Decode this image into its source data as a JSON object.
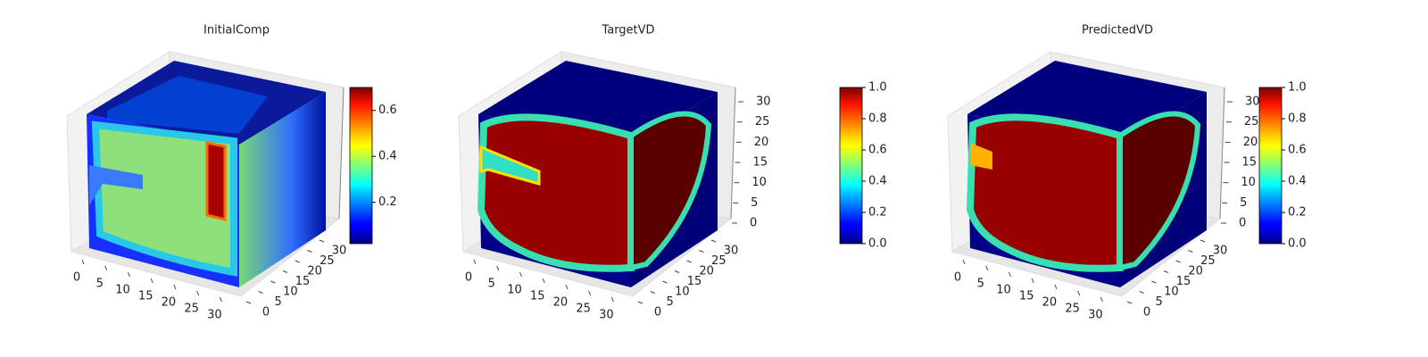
{
  "chart_data": [
    {
      "type": "voxel3d",
      "title": "InitialComp",
      "xlim": [
        0,
        32
      ],
      "xticks": [
        0,
        5,
        10,
        15,
        20,
        25,
        30
      ],
      "ylim": [
        0,
        32
      ],
      "yticks": [
        0,
        5,
        10,
        15,
        20,
        25,
        30
      ],
      "colorbar": {
        "colormap": "jet",
        "clim": [
          0.02,
          0.7
        ],
        "ticks": [
          0.2,
          0.4,
          0.6
        ]
      }
    },
    {
      "type": "voxel3d",
      "title": "TargetVD",
      "xlim": [
        0,
        32
      ],
      "xticks": [
        0,
        5,
        10,
        15,
        20,
        25,
        30
      ],
      "ylim": [
        0,
        32
      ],
      "yticks": [
        0,
        5,
        10,
        15,
        20,
        25,
        30
      ],
      "zlim": [
        0,
        32
      ],
      "zticks": [
        0,
        5,
        10,
        15,
        20,
        25,
        30
      ],
      "colorbar": {
        "colormap": "jet",
        "clim": [
          0,
          1
        ],
        "ticks": [
          {
            "value": 0,
            "label": "0.0"
          },
          0.2,
          0.4,
          0.6,
          0.8,
          {
            "value": 1,
            "label": "1.0"
          }
        ]
      }
    },
    {
      "type": "voxel3d",
      "title": "PredictedVD",
      "xlim": [
        0,
        32
      ],
      "xticks": [
        0,
        5,
        10,
        15,
        20,
        25,
        30
      ],
      "ylim": [
        0,
        32
      ],
      "yticks": [
        0,
        5,
        10,
        15,
        20,
        25,
        30
      ],
      "zlim": [
        0,
        32
      ],
      "zticks": [
        0,
        5,
        10,
        15,
        20,
        25,
        30
      ],
      "colorbar": {
        "colormap": "jet",
        "clim": [
          0,
          1
        ],
        "ticks": [
          {
            "value": 0,
            "label": "0.0"
          },
          0.2,
          0.4,
          0.6,
          0.8,
          {
            "value": 1,
            "label": "1.0"
          }
        ]
      }
    }
  ]
}
